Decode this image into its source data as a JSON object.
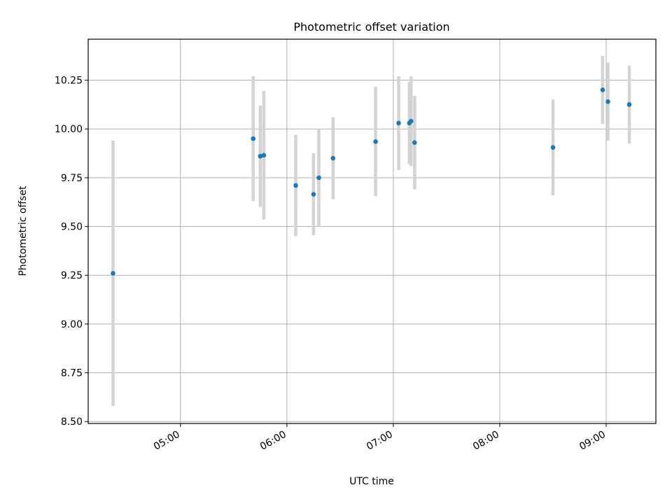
{
  "chart_data": {
    "type": "scatter",
    "title": "Photometric offset variation",
    "xlabel": "UTC time",
    "ylabel": "Photometric offset",
    "x_ticks": [
      "05:00",
      "06:00",
      "07:00",
      "08:00",
      "09:00"
    ],
    "y_ticks": [
      "8.50",
      "8.75",
      "9.00",
      "9.25",
      "9.50",
      "9.75",
      "10.00",
      "10.25"
    ],
    "xlim": [
      "04:08",
      "09:28"
    ],
    "ylim": [
      8.49,
      10.46
    ],
    "grid": true,
    "colors": {
      "point": "#1f77b4",
      "errorbar": "#d3d3d3",
      "grid": "#b0b0b0"
    },
    "points": [
      {
        "x": "04:22",
        "y": 9.26,
        "err": 0.68
      },
      {
        "x": "05:41",
        "y": 9.95,
        "err": 0.32
      },
      {
        "x": "05:45",
        "y": 9.86,
        "err": 0.26
      },
      {
        "x": "05:47",
        "y": 9.865,
        "err": 0.33
      },
      {
        "x": "06:05",
        "y": 9.71,
        "err": 0.26
      },
      {
        "x": "06:15",
        "y": 9.665,
        "err": 0.21
      },
      {
        "x": "06:18",
        "y": 9.75,
        "err": 0.25
      },
      {
        "x": "06:26",
        "y": 9.85,
        "err": 0.21
      },
      {
        "x": "06:50",
        "y": 9.935,
        "err": 0.28
      },
      {
        "x": "07:03",
        "y": 10.03,
        "err": 0.24
      },
      {
        "x": "07:09",
        "y": 10.03,
        "err": 0.21
      },
      {
        "x": "07:10",
        "y": 10.04,
        "err": 0.23
      },
      {
        "x": "07:12",
        "y": 9.93,
        "err": 0.24
      },
      {
        "x": "08:30",
        "y": 9.905,
        "err": 0.245
      },
      {
        "x": "08:58",
        "y": 10.2,
        "err": 0.175
      },
      {
        "x": "09:01",
        "y": 10.14,
        "err": 0.2
      },
      {
        "x": "09:13",
        "y": 10.125,
        "err": 0.2
      }
    ]
  }
}
